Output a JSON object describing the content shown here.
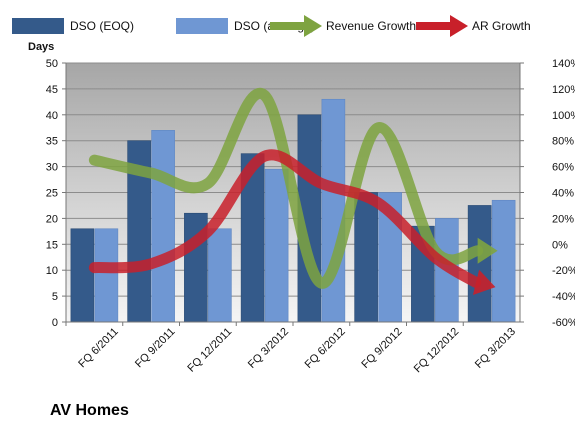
{
  "chart_data": {
    "type": "bar",
    "title": "AV Homes",
    "ylabel": "Days",
    "categories": [
      "FQ 6/2011",
      "FQ 9/2011",
      "FQ 12/2011",
      "FQ 3/2012",
      "FQ 6/2012",
      "FQ 9/2012",
      "FQ 12/2012",
      "FQ 3/2013"
    ],
    "series": [
      {
        "name": "DSO (EOQ)",
        "axis": "left",
        "kind": "bar",
        "values": [
          18,
          35,
          21,
          32.5,
          40,
          25,
          18.5,
          22.5
        ]
      },
      {
        "name": "DSO (average)",
        "axis": "left",
        "kind": "bar",
        "values": [
          18,
          37,
          18,
          29.5,
          43,
          25,
          20,
          23.5
        ]
      },
      {
        "name": "Revenue Growth",
        "axis": "right",
        "kind": "arrow-line",
        "values": [
          65,
          55,
          47,
          115,
          -30,
          90,
          -5,
          -5
        ]
      },
      {
        "name": "AR Growth",
        "axis": "right",
        "kind": "arrow-line",
        "values": [
          -18,
          -15,
          10,
          68,
          47,
          32,
          -10,
          -32
        ]
      }
    ],
    "y_left": {
      "min": 0,
      "max": 50,
      "step": 5,
      "ticks": [
        "0",
        "5",
        "10",
        "15",
        "20",
        "25",
        "30",
        "35",
        "40",
        "45",
        "50"
      ]
    },
    "y_right": {
      "min": -60,
      "max": 140,
      "step": 20,
      "ticks": [
        "-60%",
        "-40%",
        "-20%",
        "0%",
        "20%",
        "40%",
        "60%",
        "80%",
        "100%",
        "120%",
        "140%"
      ]
    },
    "grid": true,
    "legend_position": "top",
    "colors": {
      "dso_eoq": "#345a8a",
      "dso_avg": "#6f97d3",
      "revenue": "#7ea340",
      "ar": "#c8202a",
      "plot_bg_top": "#a6a6a6",
      "plot_bg_bottom": "#f5f5f5"
    }
  }
}
